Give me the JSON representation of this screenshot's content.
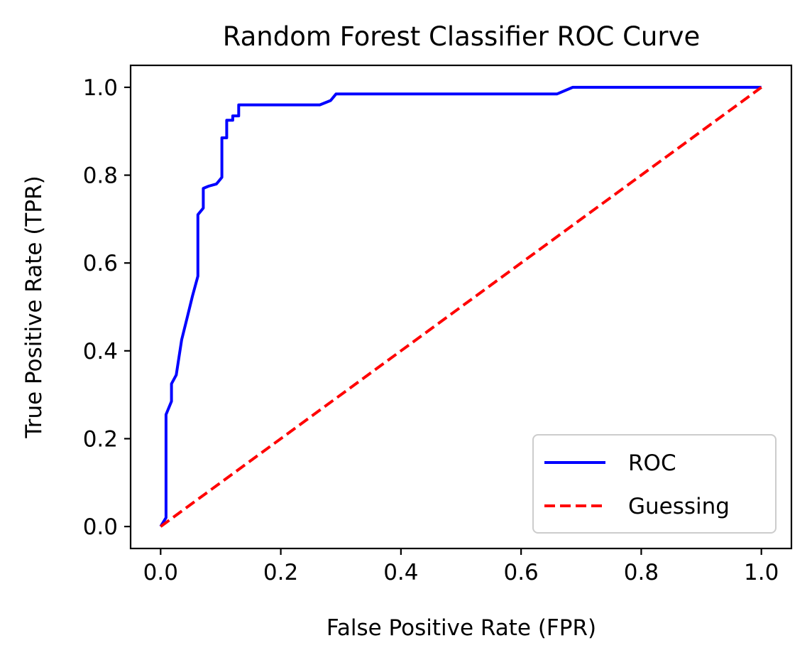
{
  "chart_data": {
    "type": "line",
    "title": "Random Forest Classifier ROC Curve",
    "xlabel": "False Positive Rate (FPR)",
    "ylabel": "True Positive Rate (TPR)",
    "xlim": [
      -0.05,
      1.05
    ],
    "ylim": [
      -0.05,
      1.05
    ],
    "xticks": [
      0.0,
      0.2,
      0.4,
      0.6,
      0.8,
      1.0
    ],
    "xtick_labels": [
      "0.0",
      "0.2",
      "0.4",
      "0.6",
      "0.8",
      "1.0"
    ],
    "yticks": [
      0.0,
      0.2,
      0.4,
      0.6,
      0.8,
      1.0
    ],
    "ytick_labels": [
      "0.0",
      "0.2",
      "0.4",
      "0.6",
      "0.8",
      "1.0"
    ],
    "grid": false,
    "legend_position": "lower-right",
    "series": [
      {
        "name": "ROC",
        "color": "#0000ff",
        "line_style": "solid",
        "x": [
          0.0,
          0.009,
          0.009,
          0.018,
          0.018,
          0.026,
          0.035,
          0.044,
          0.053,
          0.062,
          0.062,
          0.071,
          0.071,
          0.08,
          0.093,
          0.102,
          0.102,
          0.11,
          0.11,
          0.12,
          0.12,
          0.13,
          0.13,
          0.265,
          0.283,
          0.292,
          0.292,
          0.66,
          0.686,
          1.0
        ],
        "y": [
          0.0,
          0.02,
          0.255,
          0.285,
          0.325,
          0.345,
          0.425,
          0.475,
          0.525,
          0.57,
          0.71,
          0.725,
          0.77,
          0.775,
          0.78,
          0.795,
          0.885,
          0.885,
          0.925,
          0.925,
          0.935,
          0.935,
          0.96,
          0.96,
          0.97,
          0.985,
          0.985,
          0.985,
          1.0,
          1.0
        ]
      },
      {
        "name": "Guessing",
        "color": "#ff0000",
        "line_style": "dashed",
        "x": [
          0.0,
          1.0
        ],
        "y": [
          0.0,
          1.0
        ]
      }
    ]
  }
}
